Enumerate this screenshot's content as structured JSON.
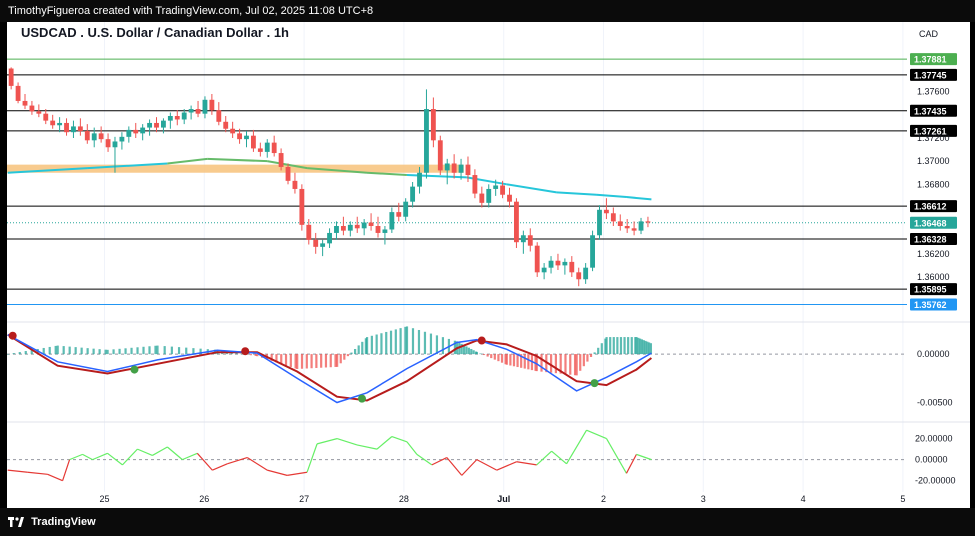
{
  "header": {
    "caption": "TimothyFigueroa created with TradingView.com, Jul 02, 2025 11:08 UTC+8"
  },
  "footer": {
    "brand": "TradingView"
  },
  "chart_data": {
    "type": "candlestick",
    "title": "USDCAD . U.S. Dollar / Canadian Dollar . 1h",
    "currency": "CAD",
    "x_ticks": [
      "25",
      "26",
      "27",
      "28",
      "Jul",
      "2",
      "3",
      "4",
      "5"
    ],
    "price_ticks": [
      "1.37600",
      "1.37200",
      "1.37000",
      "1.36800",
      "1.36200",
      "1.36000"
    ],
    "y_range": [
      1.3568,
      1.3796
    ],
    "levels": [
      {
        "label": "1.37881",
        "price": 1.37881,
        "color": "#4caf50",
        "tag": "#4caf50"
      },
      {
        "label": "1.37745",
        "price": 1.37745,
        "color": "#000000",
        "tag": "#000000"
      },
      {
        "label": "1.37435",
        "price": 1.37435,
        "color": "#000000",
        "tag": "#000000"
      },
      {
        "label": "1.37261",
        "price": 1.37261,
        "color": "#000000",
        "tag": "#000000"
      },
      {
        "label": "1.36612",
        "price": 1.36612,
        "color": "#000000",
        "tag": "#000000"
      },
      {
        "label": "1.36328",
        "price": 1.36328,
        "color": "#000000",
        "tag": "#000000"
      },
      {
        "label": "1.35895",
        "price": 1.35895,
        "color": "#000000",
        "tag": "#000000"
      },
      {
        "label": "1.35762",
        "price": 1.35762,
        "color": "#2196f3",
        "tag": "#2196f3"
      }
    ],
    "last_price": {
      "label": "1.36468",
      "price": 1.36468,
      "color": "#26a69a"
    },
    "zone": {
      "x_from": 0.0,
      "x_to": 4.6,
      "price_low": 1.369,
      "price_high": 1.3697,
      "color": "#f7c27a"
    },
    "ohlc_hourly": [
      [
        1.378,
        1.3781,
        1.3762,
        1.3765
      ],
      [
        1.3765,
        1.3768,
        1.375,
        1.3752
      ],
      [
        1.3752,
        1.3758,
        1.3745,
        1.3748
      ],
      [
        1.3748,
        1.3752,
        1.374,
        1.3743
      ],
      [
        1.3743,
        1.3749,
        1.3738,
        1.3741
      ],
      [
        1.3741,
        1.3745,
        1.3732,
        1.3735
      ],
      [
        1.3735,
        1.374,
        1.3728,
        1.3731
      ],
      [
        1.3731,
        1.3738,
        1.3725,
        1.3733
      ],
      [
        1.3733,
        1.3737,
        1.3722,
        1.3725
      ],
      [
        1.3725,
        1.3735,
        1.372,
        1.373
      ],
      [
        1.373,
        1.3737,
        1.3722,
        1.3726
      ],
      [
        1.3726,
        1.3732,
        1.3715,
        1.3718
      ],
      [
        1.3718,
        1.3729,
        1.3712,
        1.3724
      ],
      [
        1.3724,
        1.373,
        1.3716,
        1.3719
      ],
      [
        1.3719,
        1.3724,
        1.3708,
        1.3712
      ],
      [
        1.3712,
        1.3721,
        1.369,
        1.3717
      ],
      [
        1.3717,
        1.3725,
        1.371,
        1.3721
      ],
      [
        1.3721,
        1.373,
        1.3716,
        1.3727
      ],
      [
        1.3727,
        1.3733,
        1.372,
        1.3724
      ],
      [
        1.3724,
        1.3732,
        1.3718,
        1.3729
      ],
      [
        1.3729,
        1.3736,
        1.3722,
        1.3733
      ],
      [
        1.3733,
        1.3738,
        1.3725,
        1.3729
      ],
      [
        1.3729,
        1.3737,
        1.3724,
        1.3735
      ],
      [
        1.3735,
        1.3742,
        1.3728,
        1.3739
      ],
      [
        1.3739,
        1.3744,
        1.3731,
        1.3736
      ],
      [
        1.3736,
        1.3745,
        1.3732,
        1.3742
      ],
      [
        1.3742,
        1.3748,
        1.3736,
        1.3745
      ],
      [
        1.3745,
        1.3752,
        1.3738,
        1.3741
      ],
      [
        1.3741,
        1.3756,
        1.3737,
        1.3753
      ],
      [
        1.3753,
        1.3758,
        1.374,
        1.3744
      ],
      [
        1.3744,
        1.3751,
        1.3731,
        1.3734
      ],
      [
        1.3734,
        1.3739,
        1.3725,
        1.3728
      ],
      [
        1.3728,
        1.3734,
        1.372,
        1.3724
      ],
      [
        1.3724,
        1.3728,
        1.3715,
        1.3719
      ],
      [
        1.3719,
        1.3726,
        1.3712,
        1.3722
      ],
      [
        1.3722,
        1.3727,
        1.3708,
        1.3711
      ],
      [
        1.3711,
        1.3716,
        1.3704,
        1.3708
      ],
      [
        1.3708,
        1.3719,
        1.3703,
        1.3716
      ],
      [
        1.3716,
        1.3722,
        1.3704,
        1.3707
      ],
      [
        1.3707,
        1.3711,
        1.3692,
        1.3695
      ],
      [
        1.3695,
        1.3698,
        1.368,
        1.3683
      ],
      [
        1.3683,
        1.369,
        1.3672,
        1.3676
      ],
      [
        1.3676,
        1.368,
        1.364,
        1.3645
      ],
      [
        1.3645,
        1.365,
        1.3628,
        1.3632
      ],
      [
        1.3632,
        1.3638,
        1.362,
        1.3626
      ],
      [
        1.3626,
        1.3632,
        1.3618,
        1.3629
      ],
      [
        1.3629,
        1.3642,
        1.3625,
        1.3638
      ],
      [
        1.3638,
        1.3648,
        1.3632,
        1.3644
      ],
      [
        1.3644,
        1.3652,
        1.3636,
        1.364
      ],
      [
        1.364,
        1.3648,
        1.3635,
        1.3645
      ],
      [
        1.3645,
        1.3652,
        1.3638,
        1.3642
      ],
      [
        1.3642,
        1.365,
        1.3636,
        1.3647
      ],
      [
        1.3647,
        1.3655,
        1.364,
        1.3644
      ],
      [
        1.3644,
        1.3652,
        1.3634,
        1.3638
      ],
      [
        1.3638,
        1.3644,
        1.3628,
        1.3641
      ],
      [
        1.3641,
        1.366,
        1.3638,
        1.3656
      ],
      [
        1.3656,
        1.3664,
        1.3648,
        1.3652
      ],
      [
        1.3652,
        1.3668,
        1.3648,
        1.3665
      ],
      [
        1.3665,
        1.3682,
        1.366,
        1.3678
      ],
      [
        1.3678,
        1.3695,
        1.3672,
        1.369
      ],
      [
        1.369,
        1.3762,
        1.3685,
        1.3745
      ],
      [
        1.3745,
        1.3755,
        1.3712,
        1.3718
      ],
      [
        1.3718,
        1.3722,
        1.3688,
        1.3692
      ],
      [
        1.3692,
        1.3702,
        1.368,
        1.3698
      ],
      [
        1.3698,
        1.3706,
        1.3685,
        1.369
      ],
      [
        1.369,
        1.3702,
        1.3684,
        1.3697
      ],
      [
        1.3697,
        1.3704,
        1.3682,
        1.3688
      ],
      [
        1.3688,
        1.3693,
        1.3668,
        1.3672
      ],
      [
        1.3672,
        1.3678,
        1.366,
        1.3664
      ],
      [
        1.3664,
        1.368,
        1.366,
        1.3676
      ],
      [
        1.3676,
        1.3684,
        1.367,
        1.3679
      ],
      [
        1.3679,
        1.3683,
        1.3668,
        1.3671
      ],
      [
        1.3671,
        1.3677,
        1.366,
        1.3665
      ],
      [
        1.3665,
        1.3668,
        1.3625,
        1.363
      ],
      [
        1.363,
        1.364,
        1.362,
        1.3636
      ],
      [
        1.3636,
        1.3642,
        1.3622,
        1.3627
      ],
      [
        1.3627,
        1.363,
        1.36,
        1.3604
      ],
      [
        1.3604,
        1.3612,
        1.3598,
        1.3608
      ],
      [
        1.3608,
        1.3618,
        1.3603,
        1.3614
      ],
      [
        1.3614,
        1.362,
        1.3606,
        1.361
      ],
      [
        1.361,
        1.3616,
        1.3602,
        1.3613
      ],
      [
        1.3613,
        1.3618,
        1.36,
        1.3604
      ],
      [
        1.3604,
        1.3608,
        1.3592,
        1.3598
      ],
      [
        1.3598,
        1.3612,
        1.3594,
        1.3608
      ],
      [
        1.3608,
        1.364,
        1.3605,
        1.3636
      ],
      [
        1.3636,
        1.3662,
        1.3632,
        1.3658
      ],
      [
        1.3658,
        1.3668,
        1.365,
        1.3655
      ],
      [
        1.3655,
        1.366,
        1.3644,
        1.3648
      ],
      [
        1.3648,
        1.3654,
        1.364,
        1.3644
      ],
      [
        1.3644,
        1.365,
        1.3638,
        1.3642
      ],
      [
        1.3642,
        1.3648,
        1.3636,
        1.364
      ],
      [
        1.364,
        1.3651,
        1.3637,
        1.3648
      ],
      [
        1.3648,
        1.3652,
        1.3643,
        1.3647
      ]
    ],
    "moving_average": {
      "color_up": "#26c6da",
      "color_down": "#66bb6a",
      "points": [
        [
          0.0,
          1.369
        ],
        [
          0.8,
          1.3694
        ],
        [
          1.6,
          1.3698
        ],
        [
          2.0,
          1.3702
        ],
        [
          2.6,
          1.37
        ],
        [
          3.0,
          1.3694
        ],
        [
          3.6,
          1.369
        ],
        [
          4.0,
          1.3688
        ],
        [
          4.6,
          1.3686
        ],
        [
          5.0,
          1.368
        ],
        [
          5.5,
          1.3673
        ],
        [
          5.9,
          1.3671
        ],
        [
          6.2,
          1.3669
        ],
        [
          6.45,
          1.3667
        ]
      ]
    },
    "macd": {
      "ticks": [
        "0.00000",
        "-0.00500"
      ],
      "range": [
        -0.0065,
        0.0028
      ],
      "macd_line": [
        [
          0.0,
          0.002
        ],
        [
          0.5,
          -0.0008
        ],
        [
          1.0,
          -0.0018
        ],
        [
          1.5,
          -0.0006
        ],
        [
          2.1,
          0.0004
        ],
        [
          2.5,
          0.0001
        ],
        [
          2.9,
          -0.0025
        ],
        [
          3.3,
          -0.005
        ],
        [
          3.6,
          -0.004
        ],
        [
          4.0,
          -0.0015
        ],
        [
          4.5,
          0.0012
        ],
        [
          4.7,
          0.0015
        ],
        [
          5.0,
          0.0005
        ],
        [
          5.3,
          -0.001
        ],
        [
          5.7,
          -0.0038
        ],
        [
          6.0,
          -0.0024
        ],
        [
          6.3,
          -0.0008
        ],
        [
          6.45,
          0.0001
        ]
      ],
      "signal_line": [
        [
          0.0,
          0.002
        ],
        [
          0.5,
          -0.0012
        ],
        [
          1.0,
          -0.002
        ],
        [
          1.5,
          -0.001
        ],
        [
          2.1,
          0.0002
        ],
        [
          2.5,
          0.0002
        ],
        [
          2.9,
          -0.0018
        ],
        [
          3.3,
          -0.0044
        ],
        [
          3.6,
          -0.0048
        ],
        [
          4.0,
          -0.0028
        ],
        [
          4.5,
          0.0006
        ],
        [
          4.7,
          0.0014
        ],
        [
          5.0,
          0.001
        ],
        [
          5.3,
          -0.0002
        ],
        [
          5.7,
          -0.0028
        ],
        [
          6.0,
          -0.0032
        ],
        [
          6.3,
          -0.0016
        ],
        [
          6.45,
          -0.0004
        ]
      ],
      "crosses": [
        [
          0.05,
          0.0019,
          "#b71c1c"
        ],
        [
          1.27,
          -0.0016,
          "#43a047"
        ],
        [
          2.38,
          0.0003,
          "#b71c1c"
        ],
        [
          3.55,
          -0.0046,
          "#43a047"
        ],
        [
          4.75,
          0.0014,
          "#b71c1c"
        ],
        [
          5.88,
          -0.003,
          "#43a047"
        ]
      ]
    },
    "oscillator": {
      "ticks": [
        "20.00000",
        "0.00000",
        "-20.00000"
      ],
      "range": [
        -27,
        32
      ],
      "points": [
        [
          0.0,
          -10
        ],
        [
          0.2,
          -12
        ],
        [
          0.4,
          -14
        ],
        [
          0.55,
          -20
        ],
        [
          0.62,
          0
        ],
        [
          0.75,
          5
        ],
        [
          0.85,
          0
        ],
        [
          1.0,
          6
        ],
        [
          1.15,
          -5
        ],
        [
          1.3,
          10
        ],
        [
          1.45,
          4
        ],
        [
          1.6,
          12
        ],
        [
          1.75,
          0
        ],
        [
          1.9,
          6
        ],
        [
          2.05,
          -10
        ],
        [
          2.2,
          -4
        ],
        [
          2.4,
          2
        ],
        [
          2.6,
          -10
        ],
        [
          2.8,
          -15
        ],
        [
          3.0,
          -12
        ],
        [
          3.1,
          15
        ],
        [
          3.3,
          20
        ],
        [
          3.5,
          14
        ],
        [
          3.7,
          10
        ],
        [
          3.85,
          22
        ],
        [
          4.0,
          17
        ],
        [
          4.1,
          5
        ],
        [
          4.25,
          -5
        ],
        [
          4.4,
          2
        ],
        [
          4.55,
          -15
        ],
        [
          4.7,
          0
        ],
        [
          4.9,
          -10
        ],
        [
          5.1,
          -2
        ],
        [
          5.3,
          -5
        ],
        [
          5.45,
          8
        ],
        [
          5.6,
          -4
        ],
        [
          5.8,
          28
        ],
        [
          6.0,
          20
        ],
        [
          6.2,
          -13
        ],
        [
          6.3,
          5
        ],
        [
          6.45,
          0
        ]
      ]
    }
  }
}
